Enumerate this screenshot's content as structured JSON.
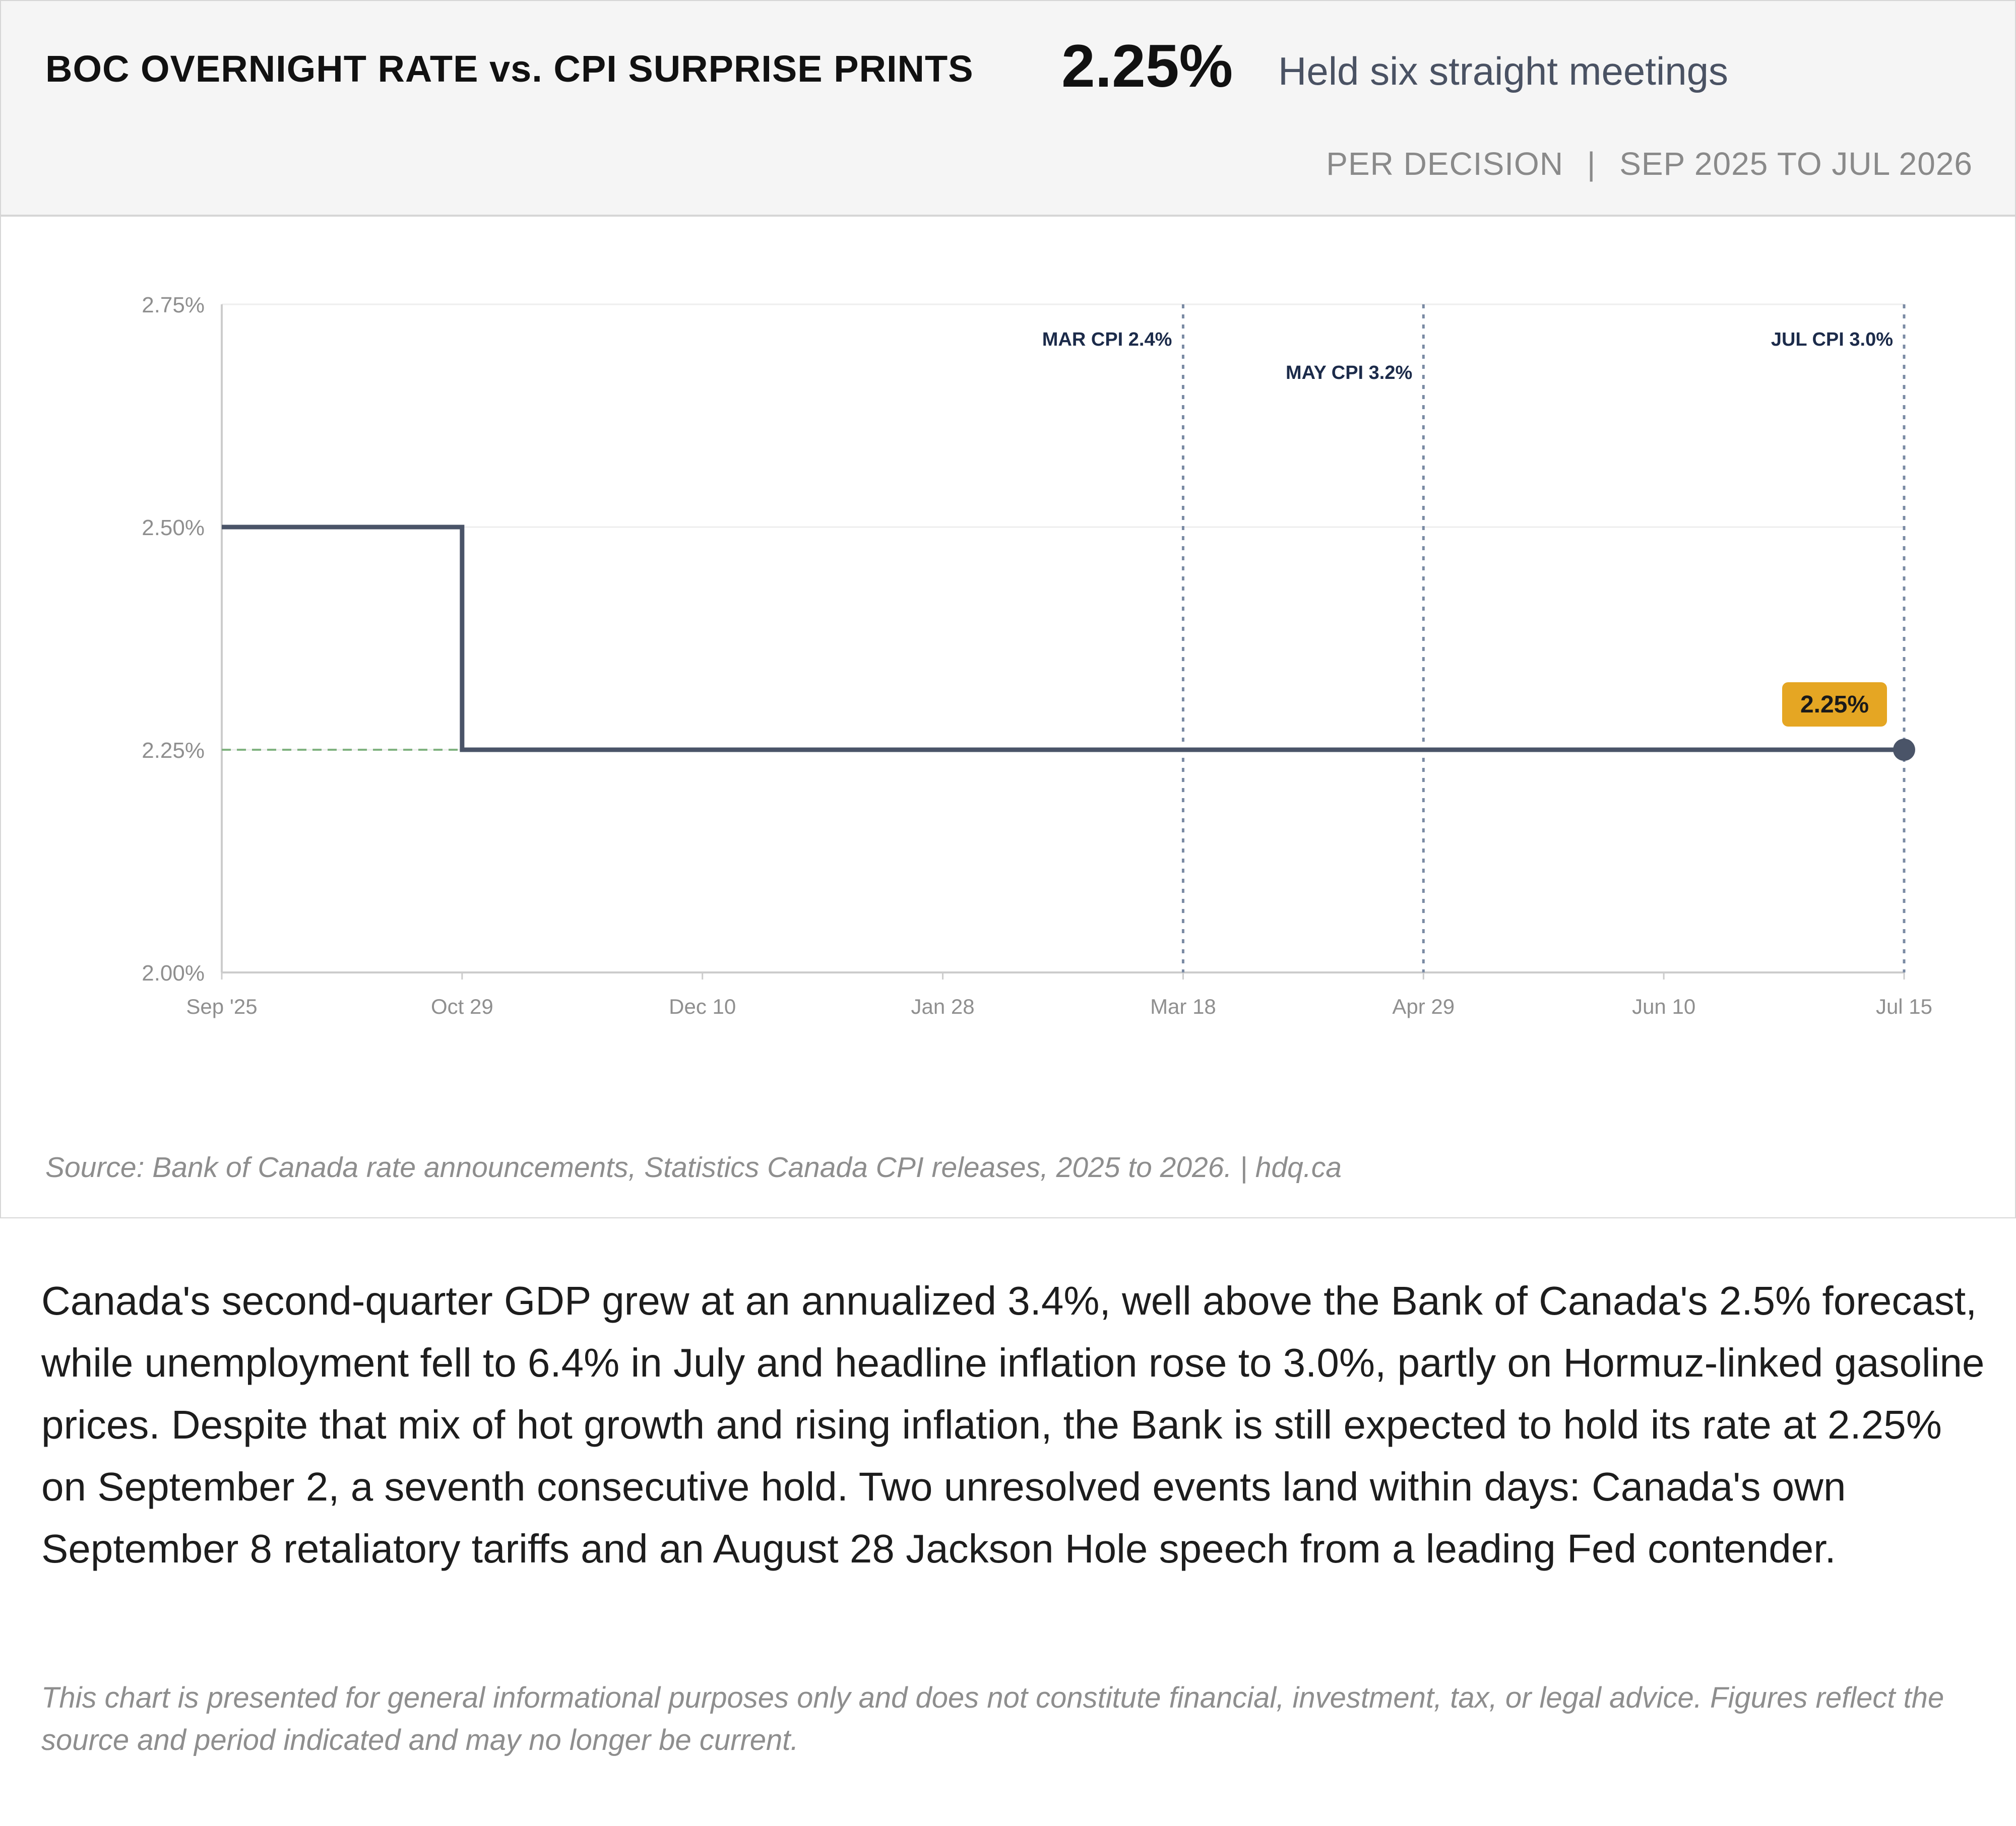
{
  "header": {
    "title": "BOC OVERNIGHT RATE vs. CPI SURPRISE PRINTS",
    "current_rate": "2.25%",
    "subtitle": "Held six straight meetings",
    "frequency": "PER DECISION",
    "separator": "|",
    "period": "SEP 2025 TO JUL 2026"
  },
  "chart_data": {
    "type": "line",
    "step": true,
    "title": "BOC OVERNIGHT RATE vs. CPI SURPRISE PRINTS",
    "xlabel": "",
    "ylabel": "",
    "ylim": [
      2.0,
      2.75
    ],
    "y_ticks": [
      {
        "value": 2.0,
        "label": "2.00%"
      },
      {
        "value": 2.25,
        "label": "2.25%"
      },
      {
        "value": 2.5,
        "label": "2.50%"
      },
      {
        "value": 2.75,
        "label": "2.75%"
      }
    ],
    "x_ticks": [
      "Sep '25",
      "Oct 29",
      "Dec 10",
      "Jan 28",
      "Mar 18",
      "Apr 29",
      "Jun 10",
      "Jul 15"
    ],
    "series": [
      {
        "values": [
          2.5,
          2.25,
          2.25,
          2.25,
          2.25,
          2.25,
          2.25,
          2.25
        ],
        "color": "#4a5468"
      }
    ],
    "annotations": [
      {
        "x": "Mar 18",
        "label": "MAR CPI 2.4%"
      },
      {
        "x": "Apr 29",
        "label": "MAY CPI 3.2%"
      },
      {
        "x": "Jul 15",
        "label": "JUL CPI 3.0%"
      }
    ],
    "reference_line": {
      "value": 2.25,
      "from": "Sep '25",
      "to": "Oct 29",
      "color": "#7fb27f"
    },
    "end_label": {
      "x": "Jul 15",
      "value": 2.25,
      "label": "2.25%",
      "color": "#e5a623"
    },
    "grid": true,
    "colors": {
      "line": "#4a5468",
      "annotation": "#7a8aa3",
      "annotation_text": "#1c2b4a",
      "axis": "#cccccc",
      "gridline": "#eeeeee",
      "tick_text": "#8f8f8f"
    }
  },
  "source": "Source: Bank of Canada rate announcements, Statistics Canada CPI releases, 2025 to 2026.  |  hdq.ca",
  "body_text": "Canada's second-quarter GDP grew at an annualized 3.4%, well above the Bank of Canada's 2.5% forecast, while unemployment fell to 6.4% in July and headline inflation rose to 3.0%, partly on Hormuz-linked gasoline prices. Despite that mix of hot growth and rising inflation, the Bank is still expected to hold its rate at 2.25% on September 2, a seventh consecutive hold. Two unresolved events land within days: Canada's own September 8 retaliatory tariffs and an August 28 Jackson Hole speech from a leading Fed contender.",
  "disclaimer": "This chart is presented for general informational purposes only and does not constitute financial, investment, tax, or legal advice. Figures reflect the source and period indicated and may no longer be current."
}
